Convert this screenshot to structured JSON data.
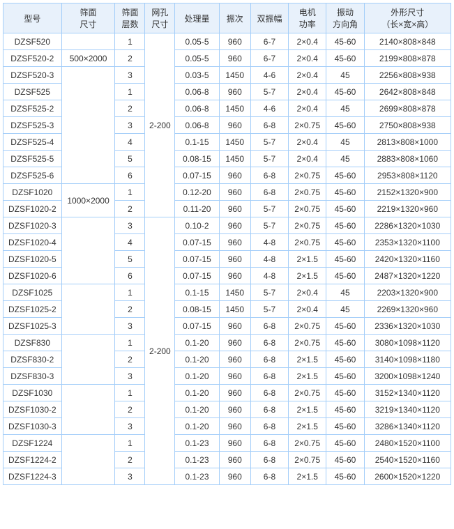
{
  "headers": [
    "型号",
    "筛面\n尺寸",
    "筛面\n层数",
    "网孔\n尺寸",
    "处理量",
    "振次",
    "双振幅",
    "电机\n功率",
    "振动\n方向角",
    "外形尺寸\n（长×宽×高）"
  ],
  "rows": [
    {
      "model": "DZSF520",
      "size": "",
      "layers": "1",
      "mesh": "",
      "cap": "0.05-5",
      "freq": "960",
      "amp": "6-7",
      "power": "2×0.4",
      "angle": "45-60",
      "dim": "2140×808×848"
    },
    {
      "model": "DZSF520-2",
      "size": "500×2000",
      "layers": "2",
      "mesh": "",
      "cap": "0.05-5",
      "freq": "960",
      "amp": "6-7",
      "power": "2×0.4",
      "angle": "45-60",
      "dim": "2199×808×878"
    },
    {
      "model": "DZSF520-3",
      "size": "",
      "layers": "3",
      "mesh": "",
      "cap": "0.03-5",
      "freq": "1450",
      "amp": "4-6",
      "power": "2×0.4",
      "angle": "45",
      "dim": "2256×808×938"
    },
    {
      "model": "DZSF525",
      "size": "",
      "layers": "1",
      "mesh": "",
      "cap": "0.06-8",
      "freq": "960",
      "amp": "5-7",
      "power": "2×0.4",
      "angle": "45-60",
      "dim": "2642×808×848"
    },
    {
      "model": "DZSF525-2",
      "size": "",
      "layers": "2",
      "mesh": "",
      "cap": "0.06-8",
      "freq": "1450",
      "amp": "4-6",
      "power": "2×0.4",
      "angle": "45",
      "dim": "2699×808×878"
    },
    {
      "model": "DZSF525-3",
      "size": "500×2500",
      "layers": "3",
      "mesh": "2-200",
      "cap": "0.06-8",
      "freq": "960",
      "amp": "6-8",
      "power": "2×0.75",
      "angle": "45-60",
      "dim": "2750×808×938"
    },
    {
      "model": "DZSF525-4",
      "size": "",
      "layers": "4",
      "mesh": "",
      "cap": "0.1-15",
      "freq": "1450",
      "amp": "5-7",
      "power": "2×0.4",
      "angle": "45",
      "dim": "2813×808×1000"
    },
    {
      "model": "DZSF525-5",
      "size": "",
      "layers": "5",
      "mesh": "",
      "cap": "0.08-15",
      "freq": "1450",
      "amp": "5-7",
      "power": "2×0.4",
      "angle": "45",
      "dim": "2883×808×1060"
    },
    {
      "model": "DZSF525-6",
      "size": "",
      "layers": "6",
      "mesh": "",
      "cap": "0.07-15",
      "freq": "960",
      "amp": "6-8",
      "power": "2×0.75",
      "angle": "45-60",
      "dim": "2953×808×1120"
    },
    {
      "model": "DZSF1020",
      "size": "1000×2000",
      "layers": "1",
      "mesh": "",
      "cap": "0.12-20",
      "freq": "960",
      "amp": "6-8",
      "power": "2×0.75",
      "angle": "45-60",
      "dim": "2152×1320×900"
    },
    {
      "model": "DZSF1020-2",
      "size": "",
      "layers": "2",
      "mesh": "",
      "cap": "0.11-20",
      "freq": "960",
      "amp": "5-7",
      "power": "2×0.75",
      "angle": "45-60",
      "dim": "2219×1320×960"
    },
    {
      "model": "DZSF1020-3",
      "size": "",
      "layers": "3",
      "mesh": "",
      "cap": "0.10-2",
      "freq": "960",
      "amp": "5-7",
      "power": "2×0.75",
      "angle": "45-60",
      "dim": "2286×1320×1030"
    },
    {
      "model": "DZSF1020-4",
      "size": "1000×2000",
      "layers": "4",
      "mesh": "",
      "cap": "0.07-15",
      "freq": "960",
      "amp": "4-8",
      "power": "2×0.75",
      "angle": "45-60",
      "dim": "2353×1320×1100"
    },
    {
      "model": "DZSF1020-5",
      "size": "",
      "layers": "5",
      "mesh": "",
      "cap": "0.07-15",
      "freq": "960",
      "amp": "4-8",
      "power": "2×1.5",
      "angle": "45-60",
      "dim": "2420×1320×1160"
    },
    {
      "model": "DZSF1020-6",
      "size": "",
      "layers": "6",
      "mesh": "",
      "cap": "0.07-15",
      "freq": "960",
      "amp": "4-8",
      "power": "2×1.5",
      "angle": "45-60",
      "dim": "2487×1320×1220"
    },
    {
      "model": "DZSF1025",
      "size": "",
      "layers": "1",
      "mesh": "",
      "cap": "0.1-15",
      "freq": "1450",
      "amp": "5-7",
      "power": "2×0.4",
      "angle": "45",
      "dim": "2203×1320×900"
    },
    {
      "model": "DZSF1025-2",
      "size": "1000×2500",
      "layers": "2",
      "mesh": "",
      "cap": "0.08-15",
      "freq": "1450",
      "amp": "5-7",
      "power": "2×0.4",
      "angle": "45",
      "dim": "2269×1320×960"
    },
    {
      "model": "DZSF1025-3",
      "size": "",
      "layers": "3",
      "mesh": "",
      "cap": "0.07-15",
      "freq": "960",
      "amp": "6-8",
      "power": "2×0.75",
      "angle": "45-60",
      "dim": "2336×1320×1030"
    },
    {
      "model": "DZSF830",
      "size": "",
      "layers": "1",
      "mesh": "2-200",
      "cap": "0.1-20",
      "freq": "960",
      "amp": "6-8",
      "power": "2×0.75",
      "angle": "45-60",
      "dim": "3080×1098×1120"
    },
    {
      "model": "DZSF830-2",
      "size": "800×3000",
      "layers": "2",
      "mesh": "",
      "cap": "0.1-20",
      "freq": "960",
      "amp": "6-8",
      "power": "2×1.5",
      "angle": "45-60",
      "dim": "3140×1098×1180"
    },
    {
      "model": "DZSF830-3",
      "size": "",
      "layers": "3",
      "mesh": "",
      "cap": "0.1-20",
      "freq": "960",
      "amp": "6-8",
      "power": "2×1.5",
      "angle": "45-60",
      "dim": "3200×1098×1240"
    },
    {
      "model": "DZSF1030",
      "size": "",
      "layers": "1",
      "mesh": "",
      "cap": "0.1-20",
      "freq": "960",
      "amp": "6-8",
      "power": "2×0.75",
      "angle": "45-60",
      "dim": "3152×1340×1120"
    },
    {
      "model": "DZSF1030-2",
      "size": "1000×3000",
      "layers": "2",
      "mesh": "",
      "cap": "0.1-20",
      "freq": "960",
      "amp": "6-8",
      "power": "2×1.5",
      "angle": "45-60",
      "dim": "3219×1340×1120"
    },
    {
      "model": "DZSF1030-3",
      "size": "",
      "layers": "3",
      "mesh": "",
      "cap": "0.1-20",
      "freq": "960",
      "amp": "6-8",
      "power": "2×1.5",
      "angle": "45-60",
      "dim": "3286×1340×1120"
    },
    {
      "model": "DZSF1224",
      "size": "",
      "layers": "1",
      "mesh": "",
      "cap": "0.1-23",
      "freq": "960",
      "amp": "6-8",
      "power": "2×0.75",
      "angle": "45-60",
      "dim": "2480×1520×1100"
    },
    {
      "model": "DZSF1224-2",
      "size": "1200×2400",
      "layers": "2",
      "mesh": "",
      "cap": "0.1-23",
      "freq": "960",
      "amp": "6-8",
      "power": "2×0.75",
      "angle": "45-60",
      "dim": "2540×1520×1160"
    },
    {
      "model": "DZSF1224-3",
      "size": "",
      "layers": "3",
      "mesh": "",
      "cap": "0.1-23",
      "freq": "960",
      "amp": "6-8",
      "power": "2×1.5",
      "angle": "45-60",
      "dim": "2600×1520×1220"
    }
  ],
  "sizeSpan": [
    1,
    1,
    7,
    7,
    7,
    7,
    7,
    7,
    7,
    2,
    2,
    4,
    4,
    4,
    4,
    3,
    3,
    3,
    3,
    3,
    3,
    3,
    3,
    3,
    3,
    3,
    3
  ],
  "sizeShow": [
    true,
    true,
    true,
    false,
    false,
    false,
    false,
    false,
    false,
    true,
    false,
    true,
    false,
    false,
    false,
    true,
    false,
    false,
    true,
    false,
    false,
    true,
    false,
    false,
    true,
    false,
    false
  ],
  "meshSpan": [
    11,
    1,
    1,
    1,
    1,
    1,
    1,
    1,
    1,
    1,
    1,
    16,
    1,
    1,
    1,
    1,
    1,
    1,
    1,
    1,
    1,
    1,
    1,
    1,
    1,
    1,
    1
  ],
  "meshShow": [
    true,
    false,
    false,
    false,
    false,
    false,
    false,
    false,
    false,
    false,
    false,
    true,
    false,
    false,
    false,
    false,
    false,
    false,
    false,
    false,
    false,
    false,
    false,
    false,
    false,
    false,
    false
  ],
  "meshText": [
    "2-200",
    "",
    "",
    "",
    "",
    "",
    "",
    "",
    "",
    "",
    "",
    "2-200",
    "",
    "",
    "",
    "",
    "",
    "",
    "",
    "",
    "",
    "",
    "",
    "",
    "",
    "",
    ""
  ]
}
